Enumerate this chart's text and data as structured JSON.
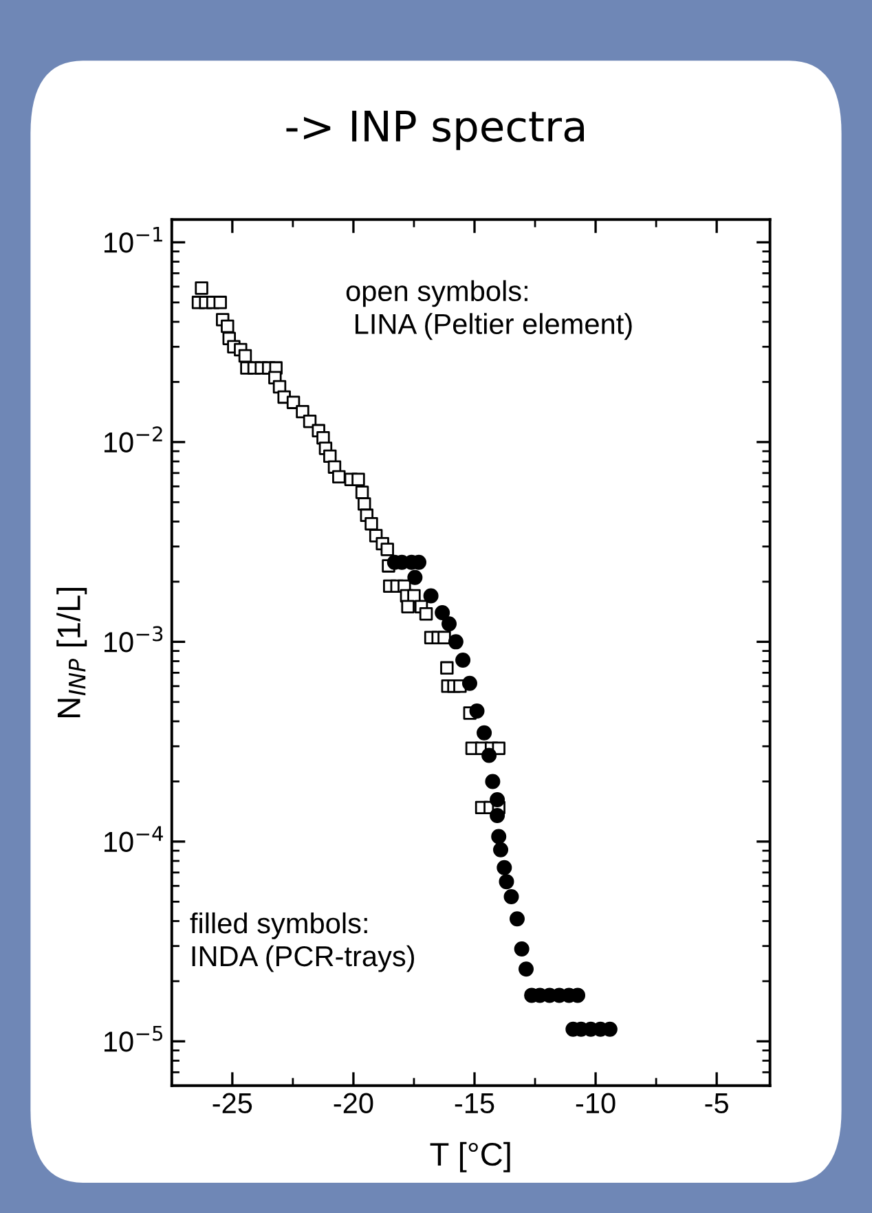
{
  "chart_data": {
    "type": "scatter",
    "title": "-> INP spectra",
    "xlabel": "T [°C]",
    "ylabel": "N$_{INP}$ [1/L]",
    "log": "y",
    "xlim": [
      -27.5,
      -2.8
    ],
    "ylim": [
      6e-06,
      0.13
    ],
    "xticks": [
      -25,
      -20,
      -15,
      -10,
      -5
    ],
    "yticks": [
      {
        "value": 0.1,
        "label": "10$^{−1}$"
      },
      {
        "value": 0.01,
        "label": "10$^{−2}$"
      },
      {
        "value": 0.001,
        "label": "10$^{−3}$"
      },
      {
        "value": 0.0001,
        "label": "10$^{−4}$"
      },
      {
        "value": 1e-05,
        "label": "10$^{−5}$"
      }
    ],
    "grid": false,
    "legend": false,
    "annotations": [
      "open symbols:\n LINA (Peltier element)",
      "filled symbols:\nINDA (PCR-trays)"
    ],
    "series": [
      {
        "color": "#000000",
        "marker": "square",
        "x": [
          -26.27,
          -26.4,
          -26.1,
          -25.8,
          -25.5,
          -25.4,
          -25.2,
          -25.13,
          -24.94,
          -24.66,
          -24.47,
          -24.4,
          -24.1,
          -23.8,
          -23.5,
          -23.2,
          -23.24,
          -23.05,
          -22.86,
          -22.48,
          -22.1,
          -21.8,
          -21.44,
          -21.25,
          -21.15,
          -20.97,
          -20.78,
          -20.6,
          -20.1,
          -19.8,
          -19.64,
          -19.55,
          -19.45,
          -19.26,
          -19.07,
          -18.8,
          -18.6,
          -18.55,
          -18.5,
          -18.2,
          -17.9,
          -17.8,
          -17.5,
          -17.75,
          -17.2,
          -17.0,
          -16.8,
          -16.5,
          -16.25,
          -16.14,
          -16.1,
          -15.85,
          -15.6,
          -15.19,
          -15.1,
          -14.7,
          -14.3,
          -14.0,
          -14.7,
          -14.35,
          -14.0
        ],
        "values": [
          0.059,
          0.05,
          0.05,
          0.05,
          0.05,
          0.041,
          0.038,
          0.033,
          0.03,
          0.029,
          0.027,
          0.0235,
          0.0235,
          0.0235,
          0.0235,
          0.0235,
          0.021,
          0.0189,
          0.0168,
          0.0158,
          0.0142,
          0.0127,
          0.0114,
          0.0105,
          0.0093,
          0.0085,
          0.0075,
          0.0067,
          0.0065,
          0.0065,
          0.0056,
          0.0049,
          0.0043,
          0.0039,
          0.0034,
          0.0031,
          0.0029,
          0.0024,
          0.0019,
          0.0019,
          0.0019,
          0.0017,
          0.0017,
          0.0015,
          0.0015,
          0.00138,
          0.00105,
          0.00105,
          0.00105,
          0.00074,
          0.0006,
          0.0006,
          0.0006,
          0.00044,
          0.000293,
          0.000293,
          0.000293,
          0.000293,
          0.000148,
          0.000148,
          0.000148
        ]
      },
      {
        "color": "#000000",
        "marker": "circle",
        "x": [
          -18.3,
          -18.0,
          -17.6,
          -17.3,
          -17.46,
          -16.8,
          -16.33,
          -16.05,
          -15.77,
          -15.48,
          -15.2,
          -14.9,
          -14.6,
          -14.4,
          -14.25,
          -14.06,
          -14.06,
          -14.0,
          -13.92,
          -13.77,
          -13.68,
          -13.48,
          -13.24,
          -13.05,
          -12.87,
          -12.64,
          -12.3,
          -11.9,
          -11.5,
          -11.1,
          -10.74,
          -10.93,
          -10.6,
          -10.2,
          -9.8,
          -9.41
        ],
        "values": [
          0.0025,
          0.0025,
          0.0025,
          0.0025,
          0.0021,
          0.0017,
          0.0014,
          0.00123,
          0.001,
          0.00081,
          0.00062,
          0.00045,
          0.00035,
          0.00027,
          0.0002,
          0.000162,
          0.000135,
          0.000106,
          9.1e-05,
          7.4e-05,
          6.3e-05,
          5.3e-05,
          4.1e-05,
          2.9e-05,
          2.3e-05,
          1.7e-05,
          1.7e-05,
          1.7e-05,
          1.7e-05,
          1.7e-05,
          1.7e-05,
          1.15e-05,
          1.15e-05,
          1.15e-05,
          1.15e-05,
          1.15e-05
        ]
      }
    ]
  }
}
